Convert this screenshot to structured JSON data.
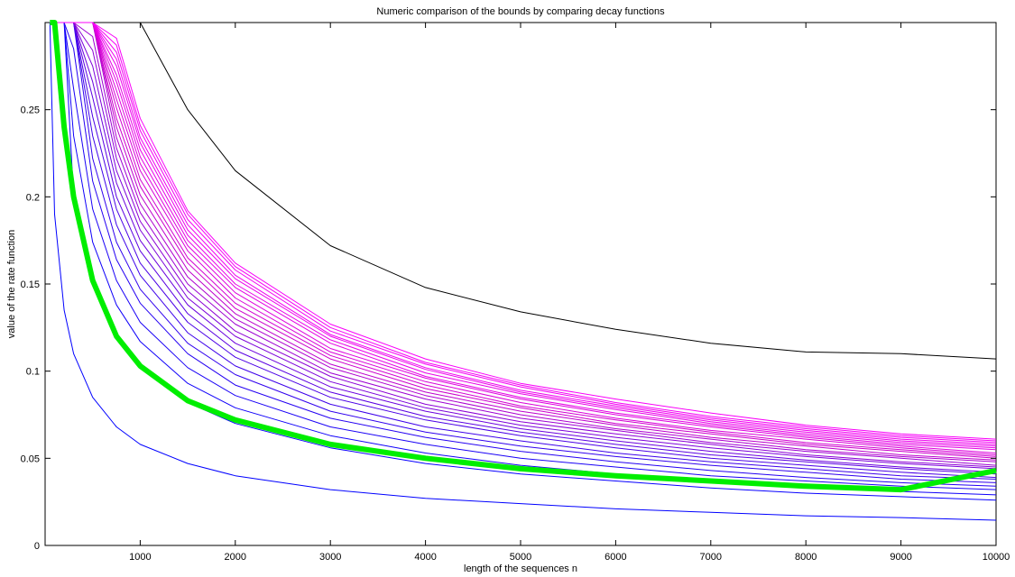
{
  "chart_data": {
    "type": "line",
    "title": "Numeric comparison of the bounds by comparing decay functions",
    "xlabel": "length of the sequences n",
    "ylabel": "value of the rate function",
    "xlim": [
      0,
      10000
    ],
    "ylim": [
      0,
      0.3
    ],
    "xticks": [
      1000,
      2000,
      3000,
      4000,
      5000,
      6000,
      7000,
      8000,
      9000,
      10000
    ],
    "yticks": [
      0,
      0.05,
      0.1,
      0.15,
      0.2,
      0.25
    ],
    "ytick_labels": [
      "0",
      "0.05",
      "0.1",
      "0.15",
      "0.2",
      "0.25"
    ],
    "grid": false,
    "x": [
      50,
      100,
      200,
      300,
      500,
      750,
      1000,
      1500,
      2000,
      3000,
      4000,
      5000,
      6000,
      7000,
      8000,
      9000,
      10000
    ],
    "series": [
      {
        "color": "#0000ff",
        "values": [
          0.3,
          0.19,
          0.135,
          0.11,
          0.085,
          0.068,
          0.058,
          0.047,
          0.04,
          0.032,
          0.027,
          0.024,
          0.021,
          0.019,
          0.017,
          0.016,
          0.0145
        ]
      },
      {
        "color": "#0800ff",
        "values": [
          0.3,
          0.3,
          0.3,
          0.2,
          0.15,
          0.12,
          0.102,
          0.082,
          0.07,
          0.056,
          0.047,
          0.041,
          0.037,
          0.033,
          0.03,
          0.028,
          0.026
        ]
      },
      {
        "color": "#1000fa",
        "values": [
          0.3,
          0.3,
          0.3,
          0.235,
          0.174,
          0.138,
          0.117,
          0.093,
          0.079,
          0.063,
          0.053,
          0.046,
          0.041,
          0.037,
          0.034,
          0.031,
          0.029
        ]
      },
      {
        "color": "#1900f6",
        "values": [
          0.3,
          0.3,
          0.3,
          0.262,
          0.193,
          0.152,
          0.128,
          0.102,
          0.086,
          0.068,
          0.058,
          0.05,
          0.045,
          0.04,
          0.037,
          0.034,
          0.032
        ]
      },
      {
        "color": "#2400f2",
        "values": [
          0.3,
          0.3,
          0.3,
          0.285,
          0.209,
          0.164,
          0.139,
          0.11,
          0.092,
          0.073,
          0.062,
          0.054,
          0.048,
          0.043,
          0.039,
          0.036,
          0.034
        ]
      },
      {
        "color": "#3000ee",
        "values": [
          0.3,
          0.3,
          0.3,
          0.3,
          0.222,
          0.174,
          0.147,
          0.116,
          0.098,
          0.077,
          0.065,
          0.057,
          0.051,
          0.046,
          0.042,
          0.038,
          0.036
        ]
      },
      {
        "color": "#3d00ea",
        "values": [
          0.3,
          0.3,
          0.3,
          0.3,
          0.235,
          0.184,
          0.155,
          0.122,
          0.103,
          0.081,
          0.068,
          0.06,
          0.053,
          0.048,
          0.044,
          0.04,
          0.038
        ]
      },
      {
        "color": "#4a00e6",
        "values": [
          0.3,
          0.3,
          0.3,
          0.3,
          0.246,
          0.193,
          0.162,
          0.128,
          0.108,
          0.085,
          0.072,
          0.063,
          0.056,
          0.05,
          0.046,
          0.042,
          0.039
        ]
      },
      {
        "color": "#5a00e2",
        "values": [
          0.3,
          0.3,
          0.3,
          0.3,
          0.257,
          0.2,
          0.169,
          0.133,
          0.112,
          0.088,
          0.074,
          0.065,
          0.058,
          0.052,
          0.048,
          0.044,
          0.041
        ]
      },
      {
        "color": "#6a00de",
        "values": [
          0.3,
          0.3,
          0.3,
          0.3,
          0.266,
          0.208,
          0.175,
          0.138,
          0.116,
          0.091,
          0.077,
          0.067,
          0.06,
          0.054,
          0.049,
          0.045,
          0.042
        ]
      },
      {
        "color": "#7b00da",
        "values": [
          0.3,
          0.3,
          0.3,
          0.3,
          0.275,
          0.215,
          0.181,
          0.142,
          0.12,
          0.094,
          0.079,
          0.069,
          0.062,
          0.056,
          0.051,
          0.047,
          0.044
        ]
      },
      {
        "color": "#8c00d6",
        "values": [
          0.3,
          0.3,
          0.3,
          0.3,
          0.284,
          0.222,
          0.186,
          0.146,
          0.123,
          0.097,
          0.081,
          0.071,
          0.064,
          0.058,
          0.052,
          0.048,
          0.045
        ]
      },
      {
        "color": "#9d00d3",
        "values": [
          0.3,
          0.3,
          0.3,
          0.3,
          0.292,
          0.228,
          0.191,
          0.15,
          0.127,
          0.099,
          0.084,
          0.073,
          0.066,
          0.059,
          0.054,
          0.05,
          0.046
        ]
      },
      {
        "color": "#ad00d0",
        "values": [
          0.3,
          0.3,
          0.3,
          0.3,
          0.3,
          0.234,
          0.196,
          0.154,
          0.13,
          0.102,
          0.086,
          0.075,
          0.067,
          0.061,
          0.055,
          0.051,
          0.048
        ]
      },
      {
        "color": "#bd00cd",
        "values": [
          0.3,
          0.3,
          0.3,
          0.3,
          0.3,
          0.24,
          0.201,
          0.158,
          0.133,
          0.104,
          0.088,
          0.077,
          0.069,
          0.062,
          0.057,
          0.052,
          0.049
        ]
      },
      {
        "color": "#cc00cc",
        "values": [
          0.3,
          0.3,
          0.3,
          0.3,
          0.3,
          0.245,
          0.206,
          0.162,
          0.136,
          0.107,
          0.09,
          0.079,
          0.07,
          0.064,
          0.058,
          0.054,
          0.05
        ]
      },
      {
        "color": "#d200d2",
        "values": [
          0.3,
          0.3,
          0.3,
          0.3,
          0.3,
          0.251,
          0.21,
          0.165,
          0.139,
          0.109,
          0.092,
          0.08,
          0.072,
          0.065,
          0.059,
          0.055,
          0.051
        ]
      },
      {
        "color": "#d800d8",
        "values": [
          0.3,
          0.3,
          0.3,
          0.3,
          0.3,
          0.256,
          0.215,
          0.169,
          0.142,
          0.111,
          0.094,
          0.082,
          0.073,
          0.066,
          0.061,
          0.056,
          0.052
        ]
      },
      {
        "color": "#de00de",
        "values": [
          0.3,
          0.3,
          0.3,
          0.3,
          0.3,
          0.261,
          0.219,
          0.172,
          0.145,
          0.113,
          0.096,
          0.084,
          0.075,
          0.068,
          0.062,
          0.057,
          0.053
        ]
      },
      {
        "color": "#e400e4",
        "values": [
          0.3,
          0.3,
          0.3,
          0.3,
          0.3,
          0.266,
          0.223,
          0.175,
          0.148,
          0.116,
          0.097,
          0.085,
          0.076,
          0.069,
          0.063,
          0.058,
          0.055
        ]
      },
      {
        "color": "#e800e8",
        "values": [
          0.3,
          0.3,
          0.3,
          0.3,
          0.3,
          0.27,
          0.227,
          0.178,
          0.15,
          0.118,
          0.099,
          0.087,
          0.078,
          0.07,
          0.064,
          0.059,
          0.056
        ]
      },
      {
        "color": "#ec00ec",
        "values": [
          0.3,
          0.3,
          0.3,
          0.3,
          0.3,
          0.275,
          0.231,
          0.181,
          0.153,
          0.12,
          0.101,
          0.088,
          0.079,
          0.071,
          0.065,
          0.06,
          0.057
        ]
      },
      {
        "color": "#f000f0",
        "values": [
          0.3,
          0.3,
          0.3,
          0.3,
          0.3,
          0.279,
          0.234,
          0.184,
          0.155,
          0.121,
          0.102,
          0.089,
          0.08,
          0.072,
          0.066,
          0.061,
          0.058
        ]
      },
      {
        "color": "#f300f3",
        "values": [
          0.3,
          0.3,
          0.3,
          0.3,
          0.3,
          0.283,
          0.238,
          0.187,
          0.158,
          0.123,
          0.104,
          0.091,
          0.081,
          0.073,
          0.067,
          0.062,
          0.059
        ]
      },
      {
        "color": "#f600f6",
        "values": [
          0.3,
          0.3,
          0.3,
          0.3,
          0.3,
          0.287,
          0.241,
          0.19,
          0.16,
          0.125,
          0.105,
          0.092,
          0.082,
          0.074,
          0.068,
          0.063,
          0.06
        ]
      },
      {
        "color": "#f900f9",
        "values": [
          0.3,
          0.3,
          0.3,
          0.3,
          0.3,
          0.291,
          0.245,
          0.192,
          0.162,
          0.127,
          0.107,
          0.093,
          0.084,
          0.076,
          0.069,
          0.064,
          0.061
        ]
      },
      {
        "color": "#00ee00",
        "values": [
          0.3,
          0.3,
          0.24,
          0.2,
          0.152,
          0.12,
          0.103,
          0.083,
          0.072,
          0.058,
          0.05,
          0.044,
          0.04,
          0.037,
          0.034,
          0.032,
          0.043
        ]
      },
      {
        "color": "#000000",
        "values": [
          null,
          null,
          null,
          null,
          null,
          null,
          0.3,
          0.25,
          0.215,
          0.172,
          0.148,
          0.134,
          0.124,
          0.116,
          0.111,
          0.11,
          0.107
        ]
      }
    ]
  }
}
